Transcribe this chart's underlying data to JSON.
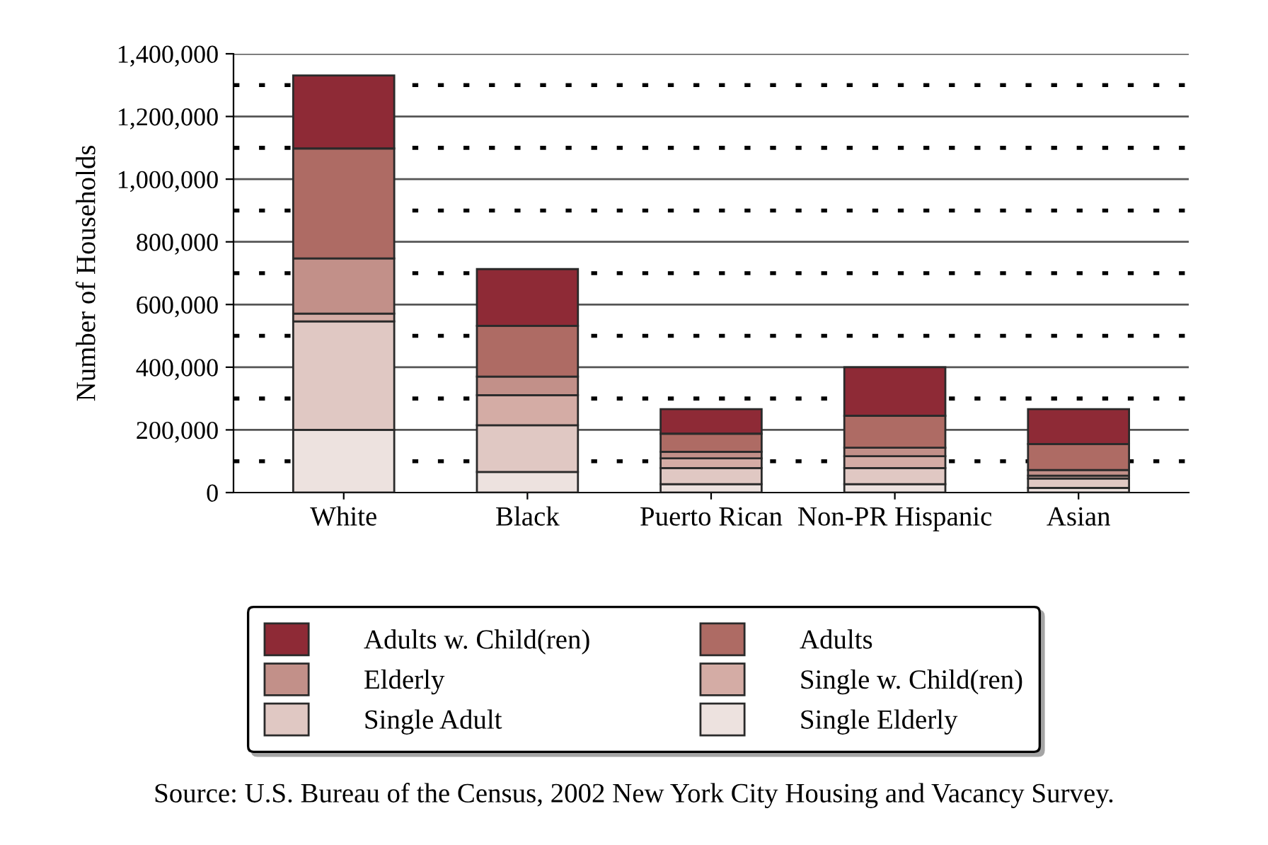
{
  "chart_data": {
    "type": "bar",
    "stacked": true,
    "ylabel": "Number of Households",
    "categories": [
      "White",
      "Black",
      "Puerto Rican",
      "Non-PR Hispanic",
      "Asian"
    ],
    "series": [
      {
        "name": "Single Elderly",
        "color": "#ede2df",
        "values": [
          200000,
          66000,
          27000,
          27000,
          15000
        ]
      },
      {
        "name": "Single Adult",
        "color": "#e0c8c3",
        "values": [
          346000,
          149000,
          51000,
          51000,
          30000
        ]
      },
      {
        "name": "Single w. Child(ren)",
        "color": "#d4aca5",
        "values": [
          25000,
          96000,
          31000,
          38000,
          9000
        ]
      },
      {
        "name": "Elderly",
        "color": "#c29089",
        "values": [
          176000,
          59000,
          21000,
          27000,
          18000
        ]
      },
      {
        "name": "Adults",
        "color": "#ae6b64",
        "values": [
          351000,
          162000,
          58000,
          102000,
          83000
        ]
      },
      {
        "name": "Adults w. Child(ren)",
        "color": "#8e2a36",
        "values": [
          233000,
          181000,
          78000,
          155000,
          111000
        ]
      }
    ],
    "ylim": [
      0,
      1400000
    ],
    "yticks": [
      {
        "value": 0,
        "label": "0"
      },
      {
        "value": 100000,
        "label": null
      },
      {
        "value": 200000,
        "label": "200,000"
      },
      {
        "value": 300000,
        "label": null
      },
      {
        "value": 400000,
        "label": "400,000"
      },
      {
        "value": 500000,
        "label": null
      },
      {
        "value": 600000,
        "label": "600,000"
      },
      {
        "value": 700000,
        "label": null
      },
      {
        "value": 800000,
        "label": "800,000"
      },
      {
        "value": 900000,
        "label": null
      },
      {
        "value": 1000000,
        "label": "1,000,000"
      },
      {
        "value": 1100000,
        "label": null
      },
      {
        "value": 1200000,
        "label": "1,200,000"
      },
      {
        "value": 1300000,
        "label": null
      },
      {
        "value": 1400000,
        "label": "1,400,000"
      }
    ],
    "grid": "y",
    "legend": "bottom",
    "annotations": [
      "Source: U.S. Bureau of the Census, 2002 New York City Housing and Vacancy Survey."
    ]
  }
}
